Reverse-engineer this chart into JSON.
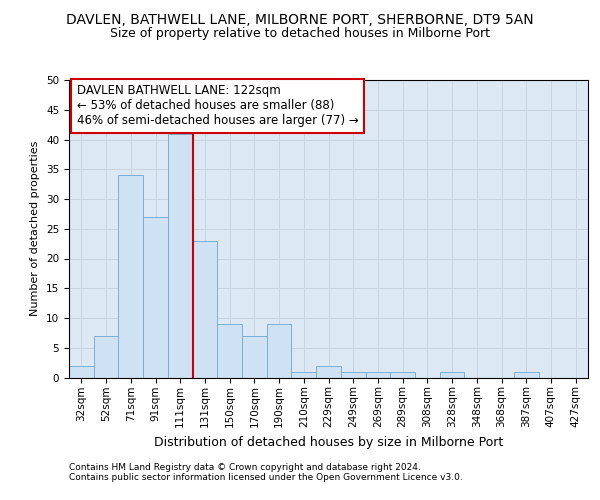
{
  "title": "DAVLEN, BATHWELL LANE, MILBORNE PORT, SHERBORNE, DT9 5AN",
  "subtitle": "Size of property relative to detached houses in Milborne Port",
  "xlabel": "Distribution of detached houses by size in Milborne Port",
  "ylabel": "Number of detached properties",
  "categories": [
    "32sqm",
    "52sqm",
    "71sqm",
    "91sqm",
    "111sqm",
    "131sqm",
    "150sqm",
    "170sqm",
    "190sqm",
    "210sqm",
    "229sqm",
    "249sqm",
    "269sqm",
    "289sqm",
    "308sqm",
    "328sqm",
    "348sqm",
    "368sqm",
    "387sqm",
    "407sqm",
    "427sqm"
  ],
  "values": [
    2,
    7,
    34,
    27,
    41,
    23,
    9,
    7,
    9,
    1,
    2,
    1,
    1,
    1,
    0,
    1,
    0,
    0,
    1,
    0,
    0
  ],
  "bar_color": "#cfe2f3",
  "bar_edge_color": "#7bafd4",
  "vline_x_index": 5,
  "annotation_text": "DAVLEN BATHWELL LANE: 122sqm\n← 53% of detached houses are smaller (88)\n46% of semi-detached houses are larger (77) →",
  "annotation_box_color": "#ffffff",
  "annotation_box_edge": "#cc0000",
  "vline_color": "#cc0000",
  "ylim": [
    0,
    50
  ],
  "yticks": [
    0,
    5,
    10,
    15,
    20,
    25,
    30,
    35,
    40,
    45,
    50
  ],
  "grid_color": "#c8d4e0",
  "bg_color": "#dce9f5",
  "footer1": "Contains HM Land Registry data © Crown copyright and database right 2024.",
  "footer2": "Contains public sector information licensed under the Open Government Licence v3.0.",
  "title_fontsize": 10,
  "subtitle_fontsize": 9,
  "annot_fontsize": 8.5,
  "ylabel_fontsize": 8,
  "xlabel_fontsize": 9,
  "tick_fontsize": 7.5,
  "footer_fontsize": 6.5
}
